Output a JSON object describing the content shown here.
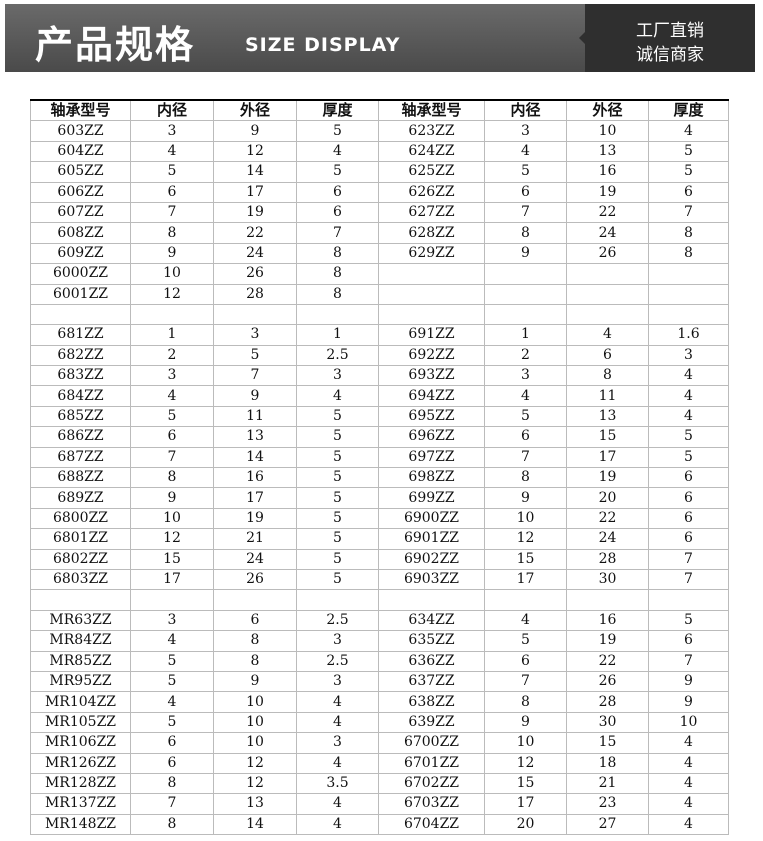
{
  "header": {
    "title": "产品规格",
    "subtitle": "SIZE DISPLAY",
    "side_lines": [
      "工厂直销",
      "诚信商家"
    ]
  },
  "table": {
    "columns": [
      "轴承型号",
      "内径",
      "外径",
      "厚度",
      "轴承型号",
      "内径",
      "外径",
      "厚度"
    ],
    "rows": [
      [
        "603ZZ",
        3,
        9,
        5,
        "623ZZ",
        3,
        10,
        4
      ],
      [
        "604ZZ",
        4,
        12,
        4,
        "624ZZ",
        4,
        13,
        5
      ],
      [
        "605ZZ",
        5,
        14,
        5,
        "625ZZ",
        5,
        16,
        5
      ],
      [
        "606ZZ",
        6,
        17,
        6,
        "626ZZ",
        6,
        19,
        6
      ],
      [
        "607ZZ",
        7,
        19,
        6,
        "627ZZ",
        7,
        22,
        7
      ],
      [
        "608ZZ",
        8,
        22,
        7,
        "628ZZ",
        8,
        24,
        8
      ],
      [
        "609ZZ",
        9,
        24,
        8,
        "629ZZ",
        9,
        26,
        8
      ],
      [
        "6000ZZ",
        10,
        26,
        8,
        null,
        null,
        null,
        null
      ],
      [
        "6001ZZ",
        12,
        28,
        8,
        null,
        null,
        null,
        null
      ],
      [
        null,
        null,
        null,
        null,
        null,
        null,
        null,
        null
      ],
      [
        "681ZZ",
        1,
        3,
        1,
        "691ZZ",
        1,
        4,
        1.6
      ],
      [
        "682ZZ",
        2,
        5,
        2.5,
        "692ZZ",
        2,
        6,
        3
      ],
      [
        "683ZZ",
        3,
        7,
        3,
        "693ZZ",
        3,
        8,
        4
      ],
      [
        "684ZZ",
        4,
        9,
        4,
        "694ZZ",
        4,
        11,
        4
      ],
      [
        "685ZZ",
        5,
        11,
        5,
        "695ZZ",
        5,
        13,
        4
      ],
      [
        "686ZZ",
        6,
        13,
        5,
        "696ZZ",
        6,
        15,
        5
      ],
      [
        "687ZZ",
        7,
        14,
        5,
        "697ZZ",
        7,
        17,
        5
      ],
      [
        "688ZZ",
        8,
        16,
        5,
        "698ZZ",
        8,
        19,
        6
      ],
      [
        "689ZZ",
        9,
        17,
        5,
        "699ZZ",
        9,
        20,
        6
      ],
      [
        "6800ZZ",
        10,
        19,
        5,
        "6900ZZ",
        10,
        22,
        6
      ],
      [
        "6801ZZ",
        12,
        21,
        5,
        "6901ZZ",
        12,
        24,
        6
      ],
      [
        "6802ZZ",
        15,
        24,
        5,
        "6902ZZ",
        15,
        28,
        7
      ],
      [
        "6803ZZ",
        17,
        26,
        5,
        "6903ZZ",
        17,
        30,
        7
      ],
      [
        null,
        null,
        null,
        null,
        null,
        null,
        null,
        null
      ],
      [
        "MR63ZZ",
        3,
        6,
        2.5,
        "634ZZ",
        4,
        16,
        5
      ],
      [
        "MR84ZZ",
        4,
        8,
        3,
        "635ZZ",
        5,
        19,
        6
      ],
      [
        "MR85ZZ",
        5,
        8,
        2.5,
        "636ZZ",
        6,
        22,
        7
      ],
      [
        "MR95ZZ",
        5,
        9,
        3,
        "637ZZ",
        7,
        26,
        9
      ],
      [
        "MR104ZZ",
        4,
        10,
        4,
        "638ZZ",
        8,
        28,
        9
      ],
      [
        "MR105ZZ",
        5,
        10,
        4,
        "639ZZ",
        9,
        30,
        10
      ],
      [
        "MR106ZZ",
        6,
        10,
        3,
        "6700ZZ",
        10,
        15,
        4
      ],
      [
        "MR126ZZ",
        6,
        12,
        4,
        "6701ZZ",
        12,
        18,
        4
      ],
      [
        "MR128ZZ",
        8,
        12,
        3.5,
        "6702ZZ",
        15,
        21,
        4
      ],
      [
        "MR137ZZ",
        7,
        13,
        4,
        "6703ZZ",
        17,
        23,
        4
      ],
      [
        "MR148ZZ",
        8,
        14,
        4,
        "6704ZZ",
        20,
        27,
        4
      ]
    ]
  }
}
